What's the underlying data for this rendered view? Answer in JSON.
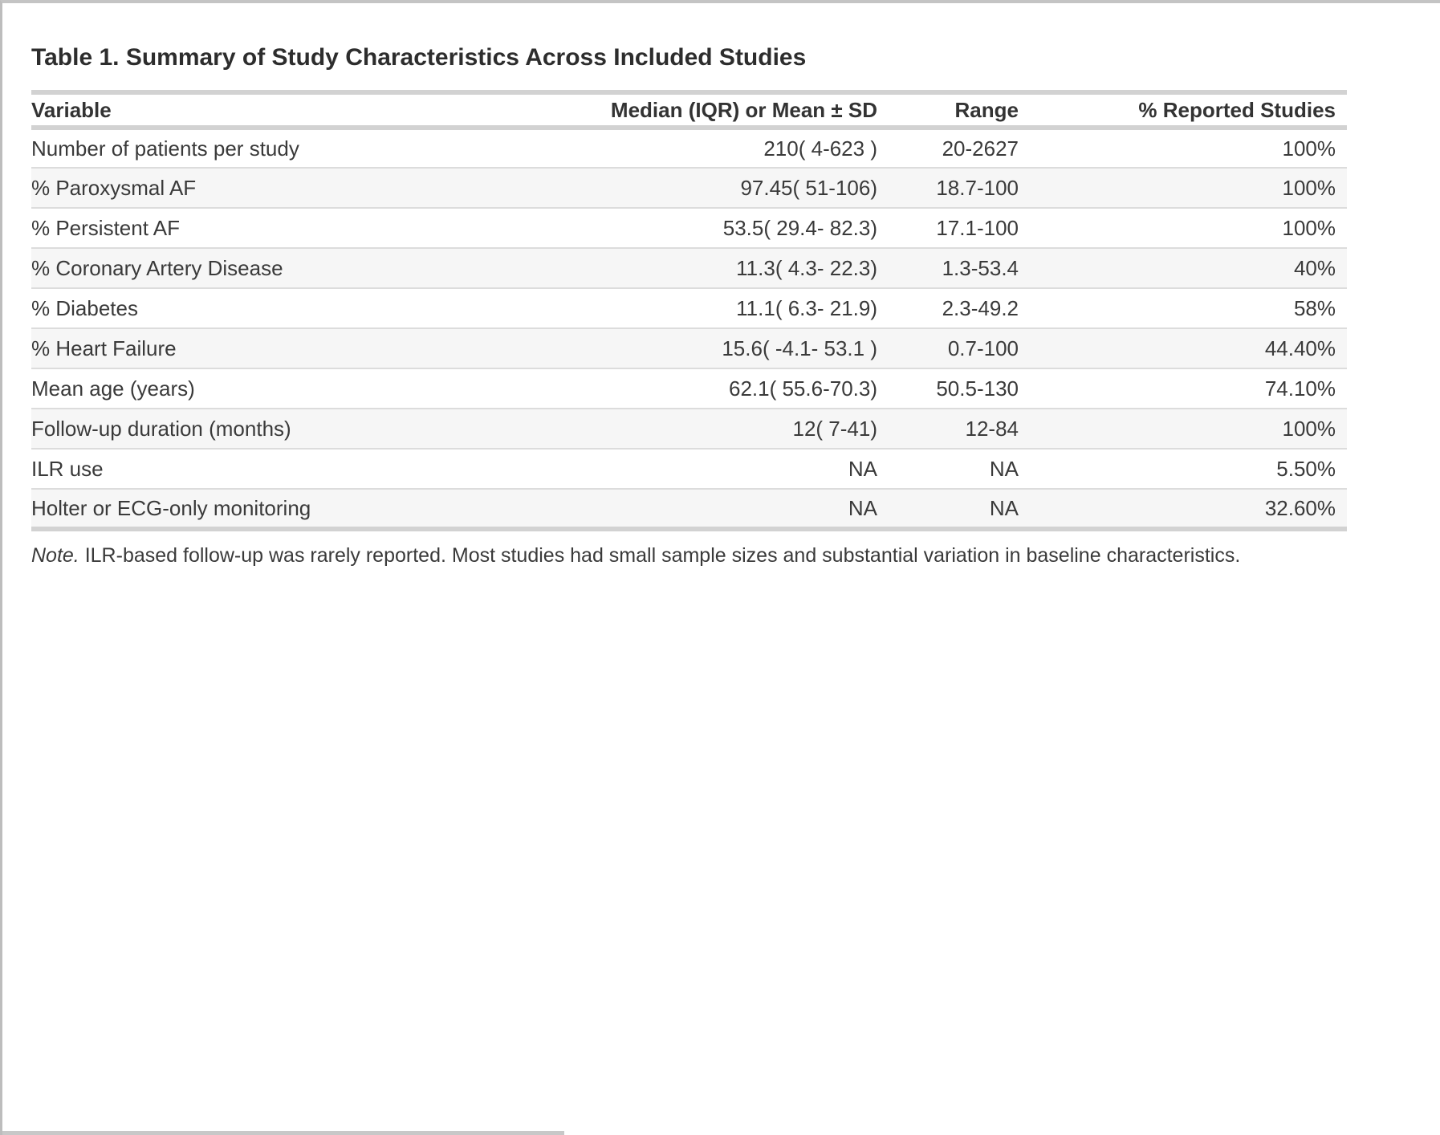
{
  "title": "Table 1. Summary of Study Characteristics Across Included Studies",
  "table": {
    "columns": [
      "Variable",
      "Median (IQR) or Mean ± SD",
      "Range",
      "% Reported Studies"
    ],
    "rows": [
      [
        "Number of patients per study",
        "210( 4-623 )",
        "20-2627",
        "100%"
      ],
      [
        "% Paroxysmal AF",
        "97.45( 51-106)",
        "18.7-100",
        "100%"
      ],
      [
        "% Persistent AF",
        "53.5( 29.4- 82.3)",
        "17.1-100",
        "100%"
      ],
      [
        "% Coronary Artery Disease",
        "11.3( 4.3- 22.3)",
        "1.3-53.4",
        "40%"
      ],
      [
        "% Diabetes",
        "11.1( 6.3- 21.9)",
        "2.3-49.2",
        "58%"
      ],
      [
        "% Heart Failure",
        "15.6( -4.1- 53.1 )",
        "0.7-100",
        "44.40%"
      ],
      [
        "Mean age (years)",
        "62.1( 55.6-70.3)",
        "50.5-130",
        "74.10%"
      ],
      [
        "Follow-up duration (months)",
        "12( 7-41)",
        "12-84",
        "100%"
      ],
      [
        "ILR use",
        "NA",
        "NA",
        "5.50%"
      ],
      [
        "Holter or ECG-only monitoring",
        "NA",
        "NA",
        "32.60%"
      ]
    ]
  },
  "note": {
    "label": "Note.",
    "text": " ILR-based follow-up was rarely reported. Most studies had small sample sizes and substantial variation in baseline characteristics."
  },
  "colors": {
    "text": "#3a3a3a",
    "title_text": "#2d2d2d",
    "thick_rule": "#d2d2d2",
    "thin_rule": "#dcdcdc",
    "row_alt_background": "#f6f6f6",
    "frame_border": "#c4c4c4"
  }
}
